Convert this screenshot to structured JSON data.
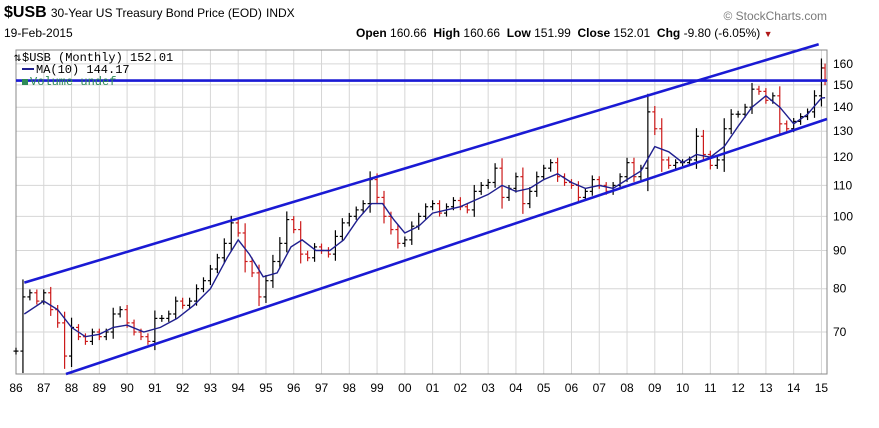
{
  "header": {
    "symbol": "$USB",
    "title": "30-Year US Treasury Bond Price (EOD)",
    "exchange": "INDX",
    "brand": "© StockCharts.com",
    "date": "19-Feb-2015",
    "open_label": "Open",
    "open_value": "160.66",
    "high_label": "High",
    "high_value": "160.66",
    "low_label": "Low",
    "low_value": "151.99",
    "close_label": "Close",
    "close_value": "152.01",
    "chg_label": "Chg",
    "chg_value": "-9.80 (-6.05%)",
    "chg_arrow": "▼"
  },
  "legend": {
    "price": "$USB (Monthly) 152.01",
    "ma": "MA(10) 144.17",
    "volume": "Volume undef"
  },
  "colors": {
    "up_bar": "#000000",
    "down_bar": "#cc1a1a",
    "ma_line": "#1f1f8f",
    "trend_lines": "#1a1ad4",
    "grid": "#d6d6d6"
  },
  "chart_data": {
    "type": "line",
    "scale": "log",
    "x": [
      "86",
      "87",
      "88",
      "89",
      "90",
      "91",
      "92",
      "93",
      "94",
      "95",
      "96",
      "97",
      "98",
      "99",
      "00",
      "01",
      "02",
      "03",
      "04",
      "05",
      "06",
      "07",
      "08",
      "09",
      "10",
      "11",
      "12",
      "13",
      "14",
      "15"
    ],
    "x_range": [
      1986,
      2015.2
    ],
    "y_ticks": [
      70,
      80,
      90,
      100,
      110,
      120,
      130,
      140,
      150,
      160
    ],
    "ylim": [
      61.5,
      167
    ],
    "series": [
      {
        "name": "$USB (Monthly)",
        "style": "ohlc-bars",
        "points": [
          [
            1986.0,
            66
          ],
          [
            1986.25,
            78
          ],
          [
            1986.5,
            79
          ],
          [
            1986.75,
            77
          ],
          [
            1987.0,
            79
          ],
          [
            1987.25,
            75
          ],
          [
            1987.5,
            72
          ],
          [
            1987.75,
            65
          ],
          [
            1988.0,
            71
          ],
          [
            1988.25,
            69
          ],
          [
            1988.5,
            68
          ],
          [
            1988.75,
            70
          ],
          [
            1989.0,
            69
          ],
          [
            1989.25,
            70
          ],
          [
            1989.5,
            74
          ],
          [
            1989.75,
            75
          ],
          [
            1990.0,
            72
          ],
          [
            1990.25,
            70
          ],
          [
            1990.5,
            69
          ],
          [
            1990.75,
            68
          ],
          [
            1991.0,
            73
          ],
          [
            1991.25,
            73
          ],
          [
            1991.5,
            74
          ],
          [
            1991.75,
            77
          ],
          [
            1992.0,
            76
          ],
          [
            1992.25,
            77
          ],
          [
            1992.5,
            80
          ],
          [
            1992.75,
            82
          ],
          [
            1993.0,
            85
          ],
          [
            1993.25,
            88
          ],
          [
            1993.5,
            92
          ],
          [
            1993.75,
            98
          ],
          [
            1994.0,
            95
          ],
          [
            1994.25,
            87
          ],
          [
            1994.5,
            84
          ],
          [
            1994.75,
            78
          ],
          [
            1995.0,
            82
          ],
          [
            1995.25,
            87
          ],
          [
            1995.5,
            92
          ],
          [
            1995.75,
            99
          ],
          [
            1996.0,
            96
          ],
          [
            1996.25,
            89
          ],
          [
            1996.5,
            88
          ],
          [
            1996.75,
            91
          ],
          [
            1997.0,
            90
          ],
          [
            1997.25,
            89
          ],
          [
            1997.5,
            94
          ],
          [
            1997.75,
            98
          ],
          [
            1998.0,
            100
          ],
          [
            1998.25,
            102
          ],
          [
            1998.5,
            104
          ],
          [
            1998.75,
            112
          ],
          [
            1999.0,
            106
          ],
          [
            1999.25,
            100
          ],
          [
            1999.5,
            96
          ],
          [
            1999.75,
            92
          ],
          [
            2000.0,
            93
          ],
          [
            2000.25,
            97
          ],
          [
            2000.5,
            100
          ],
          [
            2000.75,
            103
          ],
          [
            2001.0,
            104
          ],
          [
            2001.25,
            101
          ],
          [
            2001.5,
            103
          ],
          [
            2001.75,
            105
          ],
          [
            2002.0,
            103
          ],
          [
            2002.25,
            102
          ],
          [
            2002.5,
            108
          ],
          [
            2002.75,
            110
          ],
          [
            2003.0,
            111
          ],
          [
            2003.25,
            116
          ],
          [
            2003.5,
            106
          ],
          [
            2003.75,
            109
          ],
          [
            2004.0,
            113
          ],
          [
            2004.25,
            104
          ],
          [
            2004.5,
            108
          ],
          [
            2004.75,
            113
          ],
          [
            2005.0,
            116
          ],
          [
            2005.25,
            118
          ],
          [
            2005.5,
            113
          ],
          [
            2005.75,
            111
          ],
          [
            2006.0,
            110
          ],
          [
            2006.25,
            106
          ],
          [
            2006.5,
            108
          ],
          [
            2006.75,
            112
          ],
          [
            2007.0,
            110
          ],
          [
            2007.25,
            108
          ],
          [
            2007.5,
            110
          ],
          [
            2007.75,
            113
          ],
          [
            2008.0,
            118
          ],
          [
            2008.25,
            113
          ],
          [
            2008.5,
            116
          ],
          [
            2008.75,
            138
          ],
          [
            2009.0,
            131
          ],
          [
            2009.25,
            119
          ],
          [
            2009.5,
            117
          ],
          [
            2009.75,
            118
          ],
          [
            2010.0,
            118
          ],
          [
            2010.25,
            119
          ],
          [
            2010.5,
            128
          ],
          [
            2010.75,
            121
          ],
          [
            2011.0,
            117
          ],
          [
            2011.25,
            119
          ],
          [
            2011.5,
            131
          ],
          [
            2011.75,
            137
          ],
          [
            2012.0,
            137
          ],
          [
            2012.25,
            140
          ],
          [
            2012.5,
            148
          ],
          [
            2012.75,
            147
          ],
          [
            2013.0,
            143
          ],
          [
            2013.25,
            145
          ],
          [
            2013.5,
            133
          ],
          [
            2013.75,
            131
          ],
          [
            2014.0,
            134
          ],
          [
            2014.25,
            136
          ],
          [
            2014.5,
            138
          ],
          [
            2014.75,
            145
          ],
          [
            2015.0,
            158
          ],
          [
            2015.13,
            152
          ]
        ]
      },
      {
        "name": "MA(10)",
        "style": "line",
        "points": [
          [
            1986.3,
            74
          ],
          [
            1987.0,
            77
          ],
          [
            1987.5,
            75
          ],
          [
            1988.0,
            71
          ],
          [
            1988.5,
            69
          ],
          [
            1989.0,
            69.5
          ],
          [
            1989.5,
            71
          ],
          [
            1990.0,
            71.5
          ],
          [
            1990.6,
            70
          ],
          [
            1991.2,
            71
          ],
          [
            1991.8,
            73
          ],
          [
            1992.4,
            76
          ],
          [
            1993.0,
            80
          ],
          [
            1993.6,
            88
          ],
          [
            1994.0,
            93
          ],
          [
            1994.4,
            89
          ],
          [
            1994.9,
            83
          ],
          [
            1995.4,
            84
          ],
          [
            1995.9,
            91
          ],
          [
            1996.3,
            93
          ],
          [
            1996.8,
            90
          ],
          [
            1997.3,
            90
          ],
          [
            1997.8,
            93
          ],
          [
            1998.3,
            99
          ],
          [
            1998.8,
            104
          ],
          [
            1999.2,
            104
          ],
          [
            1999.6,
            99
          ],
          [
            2000.0,
            95
          ],
          [
            2000.5,
            97
          ],
          [
            2001.0,
            101
          ],
          [
            2001.5,
            102
          ],
          [
            2002.0,
            103
          ],
          [
            2002.5,
            105
          ],
          [
            2003.0,
            107
          ],
          [
            2003.5,
            110
          ],
          [
            2004.0,
            108
          ],
          [
            2004.5,
            109
          ],
          [
            2005.0,
            112
          ],
          [
            2005.5,
            114
          ],
          [
            2006.0,
            111
          ],
          [
            2006.5,
            109
          ],
          [
            2007.0,
            110
          ],
          [
            2007.5,
            109
          ],
          [
            2008.0,
            112
          ],
          [
            2008.5,
            115
          ],
          [
            2009.0,
            124
          ],
          [
            2009.5,
            122
          ],
          [
            2010.0,
            118
          ],
          [
            2010.5,
            121
          ],
          [
            2011.0,
            120
          ],
          [
            2011.5,
            124
          ],
          [
            2012.0,
            132
          ],
          [
            2012.5,
            140
          ],
          [
            2013.0,
            145
          ],
          [
            2013.5,
            140
          ],
          [
            2014.0,
            133
          ],
          [
            2014.5,
            137
          ],
          [
            2015.0,
            144
          ],
          [
            2015.13,
            144.17
          ]
        ]
      },
      {
        "name": "Upper channel",
        "style": "trendline",
        "points": [
          [
            1986.3,
            81.5
          ],
          [
            2014.9,
            170
          ]
        ]
      },
      {
        "name": "Lower channel",
        "style": "trendline",
        "points": [
          [
            1987.8,
            61.5
          ],
          [
            2015.2,
            135
          ]
        ]
      },
      {
        "name": "Horizontal support",
        "style": "trendline",
        "points": [
          [
            1986.0,
            152
          ],
          [
            2015.2,
            152
          ]
        ]
      }
    ]
  }
}
